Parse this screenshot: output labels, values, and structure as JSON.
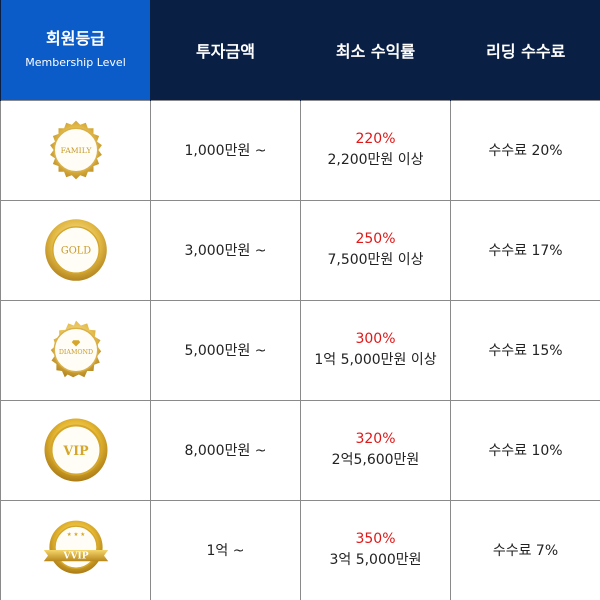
{
  "header": {
    "level_title": "회원등급",
    "level_subtitle": "Membership Level",
    "investment": "투자금액",
    "min_return": "최소 수익률",
    "leading_fee": "리딩 수수료"
  },
  "colors": {
    "header_navy": "#0a1f44",
    "header_blue": "#0b5bc9",
    "rate_red": "#e01818",
    "gold": "#d4a72c"
  },
  "tiers": [
    {
      "badge": "FAMILY",
      "investment": "1,000만원 ~",
      "rate": "220%",
      "min_return": "2,200만원 이상",
      "fee": "수수료 20%"
    },
    {
      "badge": "GOLD",
      "investment": "3,000만원 ~",
      "rate": "250%",
      "min_return": "7,500만원 이상",
      "fee": "수수료 17%"
    },
    {
      "badge": "DIAMOND",
      "investment": "5,000만원 ~",
      "rate": "300%",
      "min_return": "1억 5,000만원 이상",
      "fee": "수수료 15%"
    },
    {
      "badge": "VIP",
      "investment": "8,000만원 ~",
      "rate": "320%",
      "min_return": "2억5,600만원",
      "fee": "수수료 10%"
    },
    {
      "badge": "VVIP",
      "investment": "1억 ~",
      "rate": "350%",
      "min_return": "3억 5,000만원",
      "fee": "수수료 7%"
    }
  ]
}
